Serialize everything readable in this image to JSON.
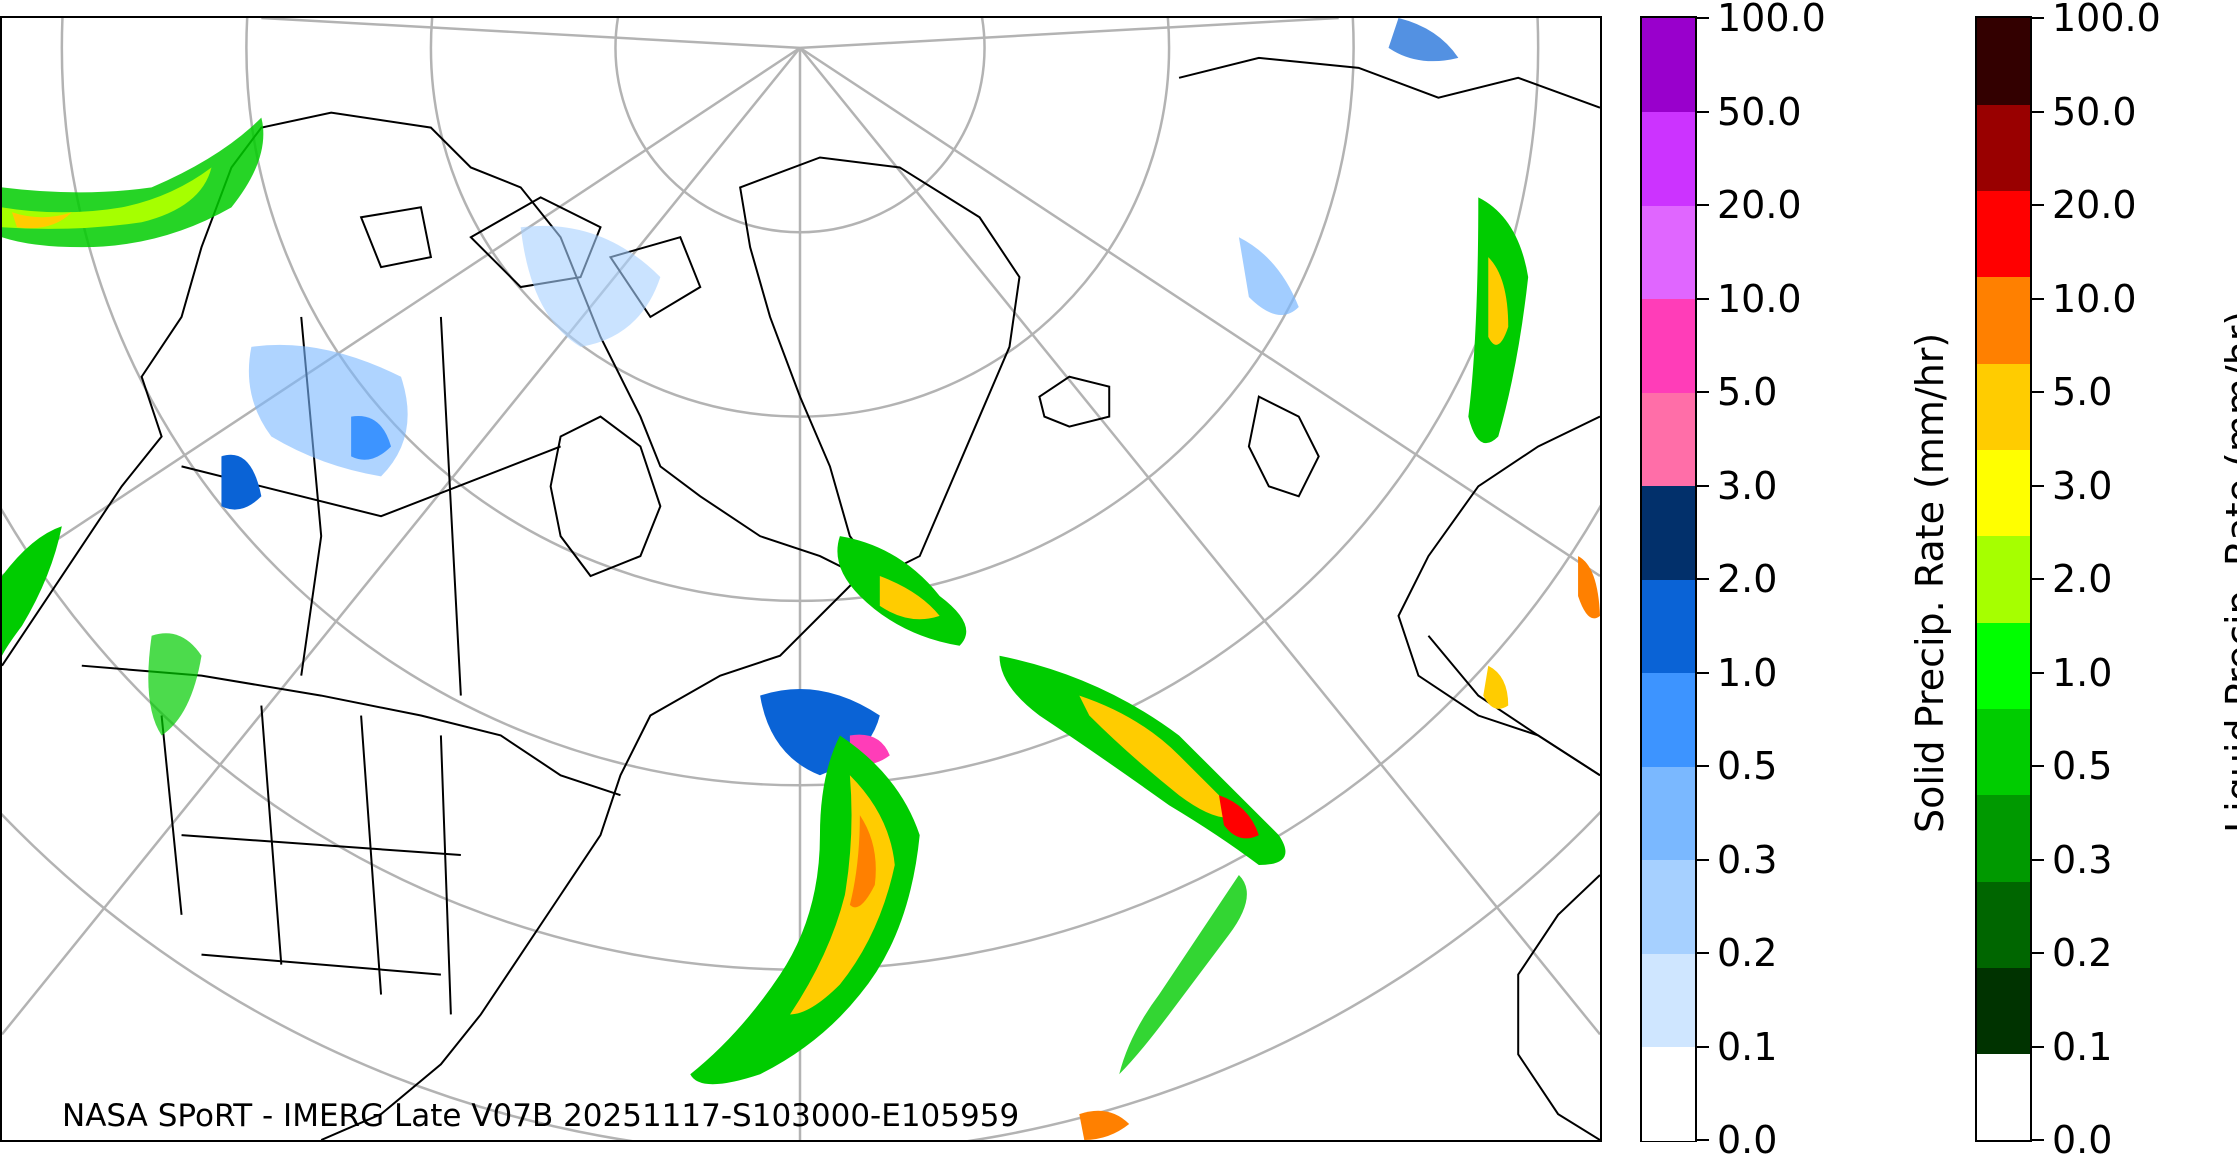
{
  "caption": "NASA SPoRT - IMERG Late V07B 20251117-S103000-E105959",
  "colorbars": {
    "solid": {
      "title": "Solid Precip. Rate (mm/hr)",
      "ticks": [
        "0.0",
        "0.1",
        "0.2",
        "0.3",
        "0.5",
        "1.0",
        "2.0",
        "3.0",
        "5.0",
        "10.0",
        "20.0",
        "50.0",
        "100.0"
      ],
      "colors": [
        "#ffffff",
        "#cfe6ff",
        "#a6d0ff",
        "#7ab8ff",
        "#3d94ff",
        "#0a63d6",
        "#02306b",
        "#ff6ea8",
        "#ff3db8",
        "#e066ff",
        "#cc33ff",
        "#9900cc"
      ]
    },
    "liquid": {
      "title": "Liquid Precip. Rate (mm/hr)",
      "ticks": [
        "0.0",
        "0.1",
        "0.2",
        "0.3",
        "0.5",
        "1.0",
        "2.0",
        "3.0",
        "5.0",
        "10.0",
        "20.0",
        "50.0",
        "100.0"
      ],
      "colors": [
        "#ffffff",
        "#003300",
        "#006600",
        "#009900",
        "#00cc00",
        "#00ff00",
        "#a6ff00",
        "#ffff00",
        "#ffcc00",
        "#ff8000",
        "#ff0000",
        "#990000",
        "#330000"
      ]
    }
  }
}
